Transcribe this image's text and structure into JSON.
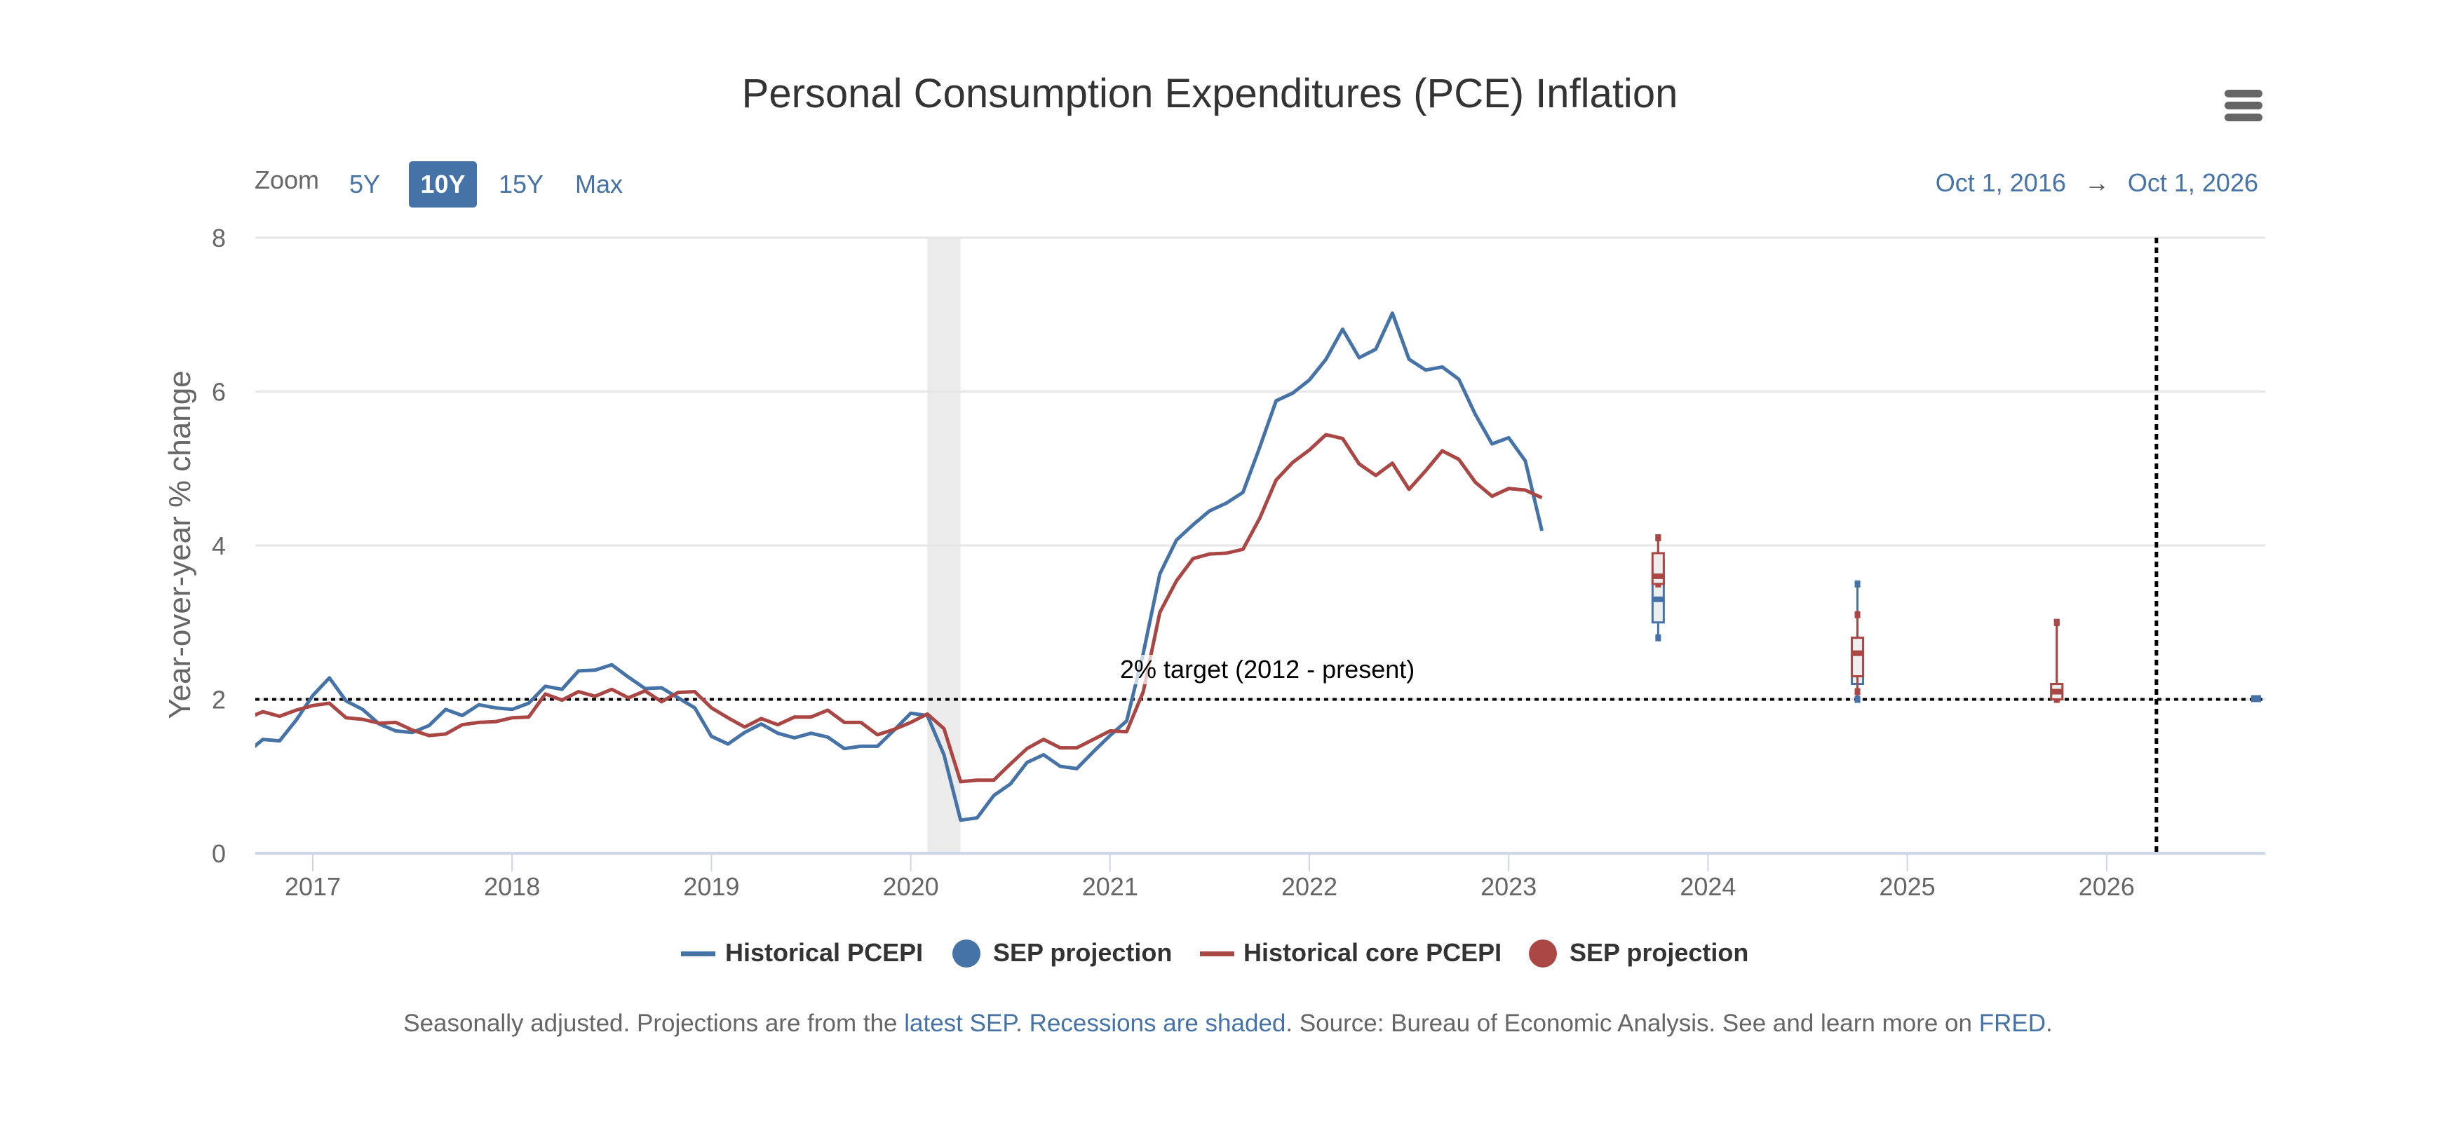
{
  "title": "Personal Consumption Expenditures (PCE) Inflation",
  "menu_icon": "hamburger-menu-icon",
  "zoom": {
    "label": "Zoom",
    "options": [
      "5Y",
      "10Y",
      "15Y",
      "Max"
    ],
    "selected": "10Y"
  },
  "range": {
    "from": "Oct 1, 2016",
    "arrow": "→",
    "to": "Oct 1, 2026"
  },
  "colors": {
    "headline": "#4572a7",
    "core": "#aa4643",
    "grid": "#e6e6e6",
    "axis": "#ccd6eb",
    "recession": "#ebebeb"
  },
  "chart_data": {
    "type": "line",
    "title": "Personal Consumption Expenditures (PCE) Inflation",
    "ylabel": "Year-over-year % change",
    "xlabel": "",
    "ylim": [
      0,
      8
    ],
    "yticks": [
      "0",
      "2",
      "4",
      "6",
      "8"
    ],
    "xlim": [
      "2016-10-01",
      "2026-10-01"
    ],
    "xticks": [
      "2017",
      "2018",
      "2019",
      "2020",
      "2021",
      "2022",
      "2023",
      "2024",
      "2025",
      "2026"
    ],
    "grid": true,
    "x_start": "2016-09",
    "frequency": "monthly",
    "series": [
      {
        "name": "Historical PCEPI",
        "color": "#4572a7",
        "values": [
          1.3,
          1.48,
          1.46,
          1.73,
          2.05,
          2.28,
          1.98,
          1.87,
          1.68,
          1.59,
          1.57,
          1.66,
          1.87,
          1.79,
          1.93,
          1.89,
          1.87,
          1.95,
          2.17,
          2.13,
          2.37,
          2.38,
          2.45,
          2.29,
          2.14,
          2.15,
          2.02,
          1.89,
          1.52,
          1.42,
          1.57,
          1.68,
          1.56,
          1.5,
          1.56,
          1.51,
          1.36,
          1.39,
          1.39,
          1.6,
          1.82,
          1.79,
          1.28,
          0.43,
          0.46,
          0.75,
          0.9,
          1.18,
          1.28,
          1.13,
          1.1,
          1.32,
          1.53,
          1.72,
          2.6,
          3.63,
          4.07,
          4.27,
          4.45,
          4.55,
          4.69,
          5.27,
          5.88,
          5.98,
          6.15,
          6.42,
          6.81,
          6.44,
          6.55,
          7.02,
          6.42,
          6.28,
          6.32,
          6.16,
          5.7,
          5.32,
          5.4,
          5.1,
          4.19
        ]
      },
      {
        "name": "Historical core PCEPI",
        "color": "#aa4643",
        "values": [
          1.75,
          1.84,
          1.78,
          1.86,
          1.92,
          1.95,
          1.76,
          1.74,
          1.69,
          1.7,
          1.6,
          1.53,
          1.55,
          1.67,
          1.7,
          1.71,
          1.76,
          1.77,
          2.07,
          1.99,
          2.1,
          2.04,
          2.13,
          2.02,
          2.11,
          1.97,
          2.09,
          2.1,
          1.89,
          1.76,
          1.64,
          1.75,
          1.67,
          1.77,
          1.77,
          1.86,
          1.7,
          1.7,
          1.54,
          1.61,
          1.7,
          1.81,
          1.62,
          0.93,
          0.95,
          0.95,
          1.16,
          1.36,
          1.48,
          1.37,
          1.37,
          1.48,
          1.59,
          1.58,
          2.1,
          3.13,
          3.54,
          3.83,
          3.89,
          3.9,
          3.95,
          4.35,
          4.85,
          5.08,
          5.24,
          5.44,
          5.39,
          5.06,
          4.91,
          5.07,
          4.73,
          4.97,
          5.23,
          5.12,
          4.82,
          4.64,
          4.74,
          4.72,
          4.62
        ]
      }
    ],
    "projections": [
      {
        "name": "SEP projection",
        "color": "#4572a7",
        "boxes": [
          {
            "date": "2023-10",
            "low": 2.8,
            "q1": 3.0,
            "median": 3.3,
            "q3": 3.8,
            "high": 4.1
          },
          {
            "date": "2024-10",
            "low": 2.0,
            "q1": 2.2,
            "median": 2.5,
            "q3": 2.8,
            "high": 3.5
          },
          {
            "date": "2025-10",
            "low": 2.0,
            "q1": 2.0,
            "median": 2.1,
            "q3": 2.2,
            "high": 3.0
          },
          {
            "date": "2026-10",
            "low": 2.0,
            "q1": 2.0,
            "median": 2.0,
            "q3": 2.0,
            "high": 2.0
          }
        ]
      },
      {
        "name": "SEP projection",
        "color": "#aa4643",
        "boxes": [
          {
            "date": "2023-10",
            "low": 3.5,
            "q1": 3.5,
            "median": 3.6,
            "q3": 3.9,
            "high": 4.1
          },
          {
            "date": "2024-10",
            "low": 2.1,
            "q1": 2.3,
            "median": 2.6,
            "q3": 2.8,
            "high": 3.1
          },
          {
            "date": "2025-10",
            "low": 2.0,
            "q1": 2.0,
            "median": 2.1,
            "q3": 2.2,
            "high": 3.0
          }
        ]
      }
    ],
    "target": {
      "value": 2,
      "label": "2% target (2012 - present)"
    },
    "recessions": [
      {
        "from": "2020-02",
        "to": "2020-04"
      }
    ],
    "vertical_marker_date": "2026-04",
    "legend": {
      "placement": "bottom",
      "items": [
        "Historical PCEPI",
        "SEP projection",
        "Historical core PCEPI",
        "SEP projection"
      ]
    }
  },
  "footer": {
    "text1": "Seasonally adjusted. Projections are from the ",
    "link1": "latest SEP",
    "text2": ". ",
    "link2": "Recessions are shaded",
    "text3": ". Source: Bureau of Economic Analysis. See and learn more on ",
    "link3": "FRED",
    "text4": "."
  }
}
